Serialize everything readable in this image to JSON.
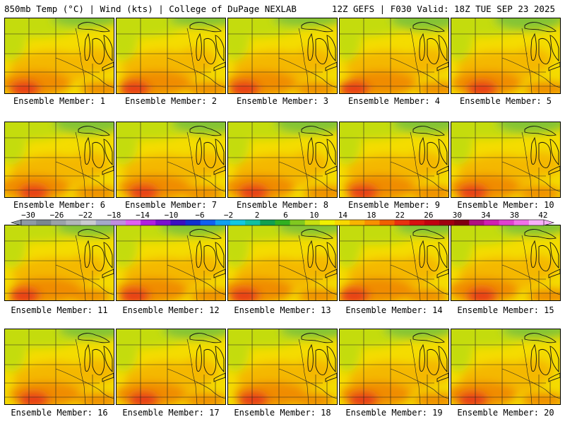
{
  "header": {
    "left": "850mb Temp (°C) | Wind (kts) | College of DuPage NEXLAB",
    "right": "12Z GEFS | F030 Valid: 18Z TUE SEP 23 2025"
  },
  "panels": [
    {
      "label": "Ensemble Member: 1"
    },
    {
      "label": "Ensemble Member: 2"
    },
    {
      "label": "Ensemble Member: 3"
    },
    {
      "label": "Ensemble Member: 4"
    },
    {
      "label": "Ensemble Member: 5"
    },
    {
      "label": "Ensemble Member: 6"
    },
    {
      "label": "Ensemble Member: 7"
    },
    {
      "label": "Ensemble Member: 8"
    },
    {
      "label": "Ensemble Member: 9"
    },
    {
      "label": "Ensemble Member: 10"
    },
    {
      "label": "Ensemble Member: 11"
    },
    {
      "label": "Ensemble Member: 12"
    },
    {
      "label": "Ensemble Member: 13"
    },
    {
      "label": "Ensemble Member: 14"
    },
    {
      "label": "Ensemble Member: 15"
    },
    {
      "label": "Ensemble Member: 16"
    },
    {
      "label": "Ensemble Member: 17"
    },
    {
      "label": "Ensemble Member: 18"
    },
    {
      "label": "Ensemble Member: 19"
    },
    {
      "label": "Ensemble Member: 20"
    }
  ],
  "colorbar": {
    "ticks": [
      "−30",
      "−26",
      "−22",
      "−18",
      "−14",
      "−10",
      "−6",
      "−2",
      "2",
      "6",
      "10",
      "14",
      "18",
      "22",
      "26",
      "30",
      "34",
      "38",
      "42"
    ],
    "colors": [
      "#8e9aa3",
      "#7a878f",
      "#9aa2a8",
      "#b1b6ba",
      "#c9cbd0",
      "#a4a9c9",
      "#c08ee0",
      "#e060f0",
      "#b020e0",
      "#7a10d0",
      "#3a10c0",
      "#1030d0",
      "#1060f0",
      "#10a0f0",
      "#10c8e0",
      "#10c0a0",
      "#10a050",
      "#30b020",
      "#80c820",
      "#c8e010",
      "#f0f000",
      "#f8d800",
      "#f8b400",
      "#f89000",
      "#f06000",
      "#e83010",
      "#d81010",
      "#c00010",
      "#a00010",
      "#800010",
      "#b01080",
      "#d020b0",
      "#e040d0",
      "#f070e8",
      "#f8b0f8"
    ]
  },
  "map": {
    "colors": {
      "green": "#84c434",
      "lime": "#c4dc10",
      "yellow": "#f4dc00",
      "gold": "#f4b800",
      "orange": "#f08c00",
      "red": "#e83c18"
    }
  }
}
